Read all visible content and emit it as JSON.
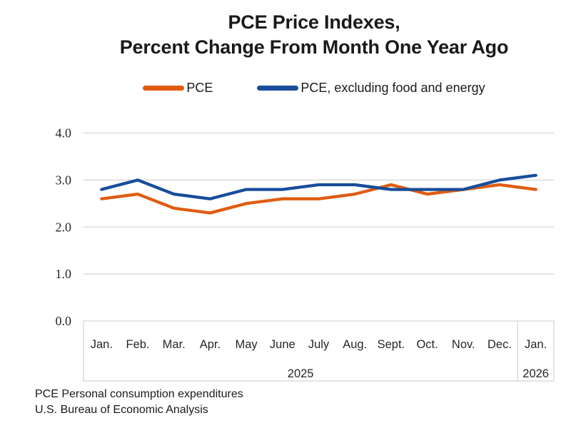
{
  "title": {
    "line1": "PCE Price Indexes,",
    "line2": "Percent Change From Month One Year Ago"
  },
  "legend": {
    "items": [
      {
        "label": "PCE",
        "color": "#E05C11"
      },
      {
        "label": "PCE, excluding food and energy",
        "color": "#174D9B"
      }
    ]
  },
  "chart_data": {
    "type": "line",
    "title": "PCE Price Indexes, Percent Change From Month One Year Ago",
    "categories": [
      "Jan.",
      "Feb.",
      "Mar.",
      "Apr.",
      "May",
      "June",
      "July",
      "Aug.",
      "Sept.",
      "Oct.",
      "Nov.",
      "Dec.",
      "Jan."
    ],
    "year_groups": [
      {
        "label": "2025",
        "span": 12
      },
      {
        "label": "2026",
        "span": 1
      }
    ],
    "series": [
      {
        "name": "PCE",
        "color": "#E05C11",
        "values": [
          2.6,
          2.7,
          2.4,
          2.3,
          2.5,
          2.6,
          2.6,
          2.7,
          2.9,
          2.7,
          2.8,
          2.9,
          2.8
        ]
      },
      {
        "name": "PCE, excluding food and energy",
        "color": "#174D9B",
        "values": [
          2.8,
          3.0,
          2.7,
          2.6,
          2.8,
          2.8,
          2.9,
          2.9,
          2.8,
          2.8,
          2.8,
          3.0,
          3.1
        ]
      }
    ],
    "ylim": [
      0.0,
      4.0
    ],
    "yticks": [
      "0.0",
      "1.0",
      "2.0",
      "3.0",
      "4.0"
    ],
    "grid": true,
    "legend_position": "top"
  },
  "footer": {
    "line1": "PCE Personal consumption expenditures",
    "line2": "U.S. Bureau of Economic Analysis"
  },
  "colors": {
    "grid": "#D6D6D6",
    "axis_text": "#262626",
    "title_text": "#1A1A1A"
  }
}
